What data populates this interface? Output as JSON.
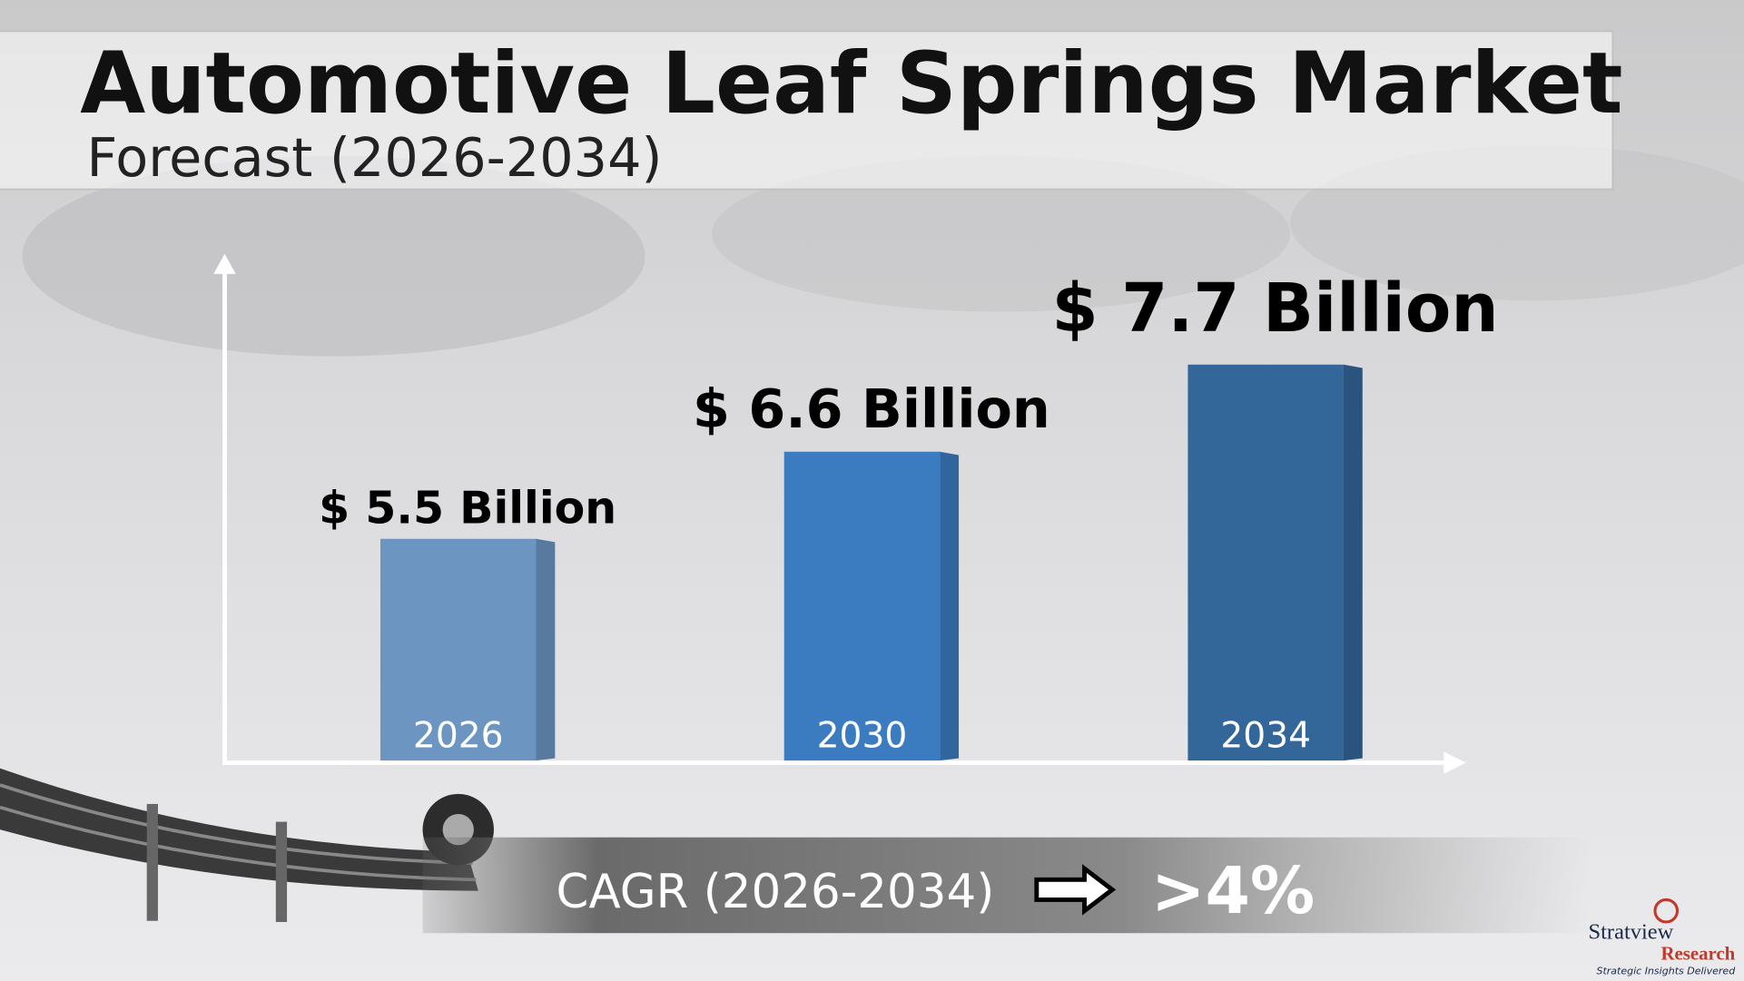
{
  "chart_data": {
    "type": "bar",
    "title": "Automotive Leaf Springs Market",
    "subtitle": "Forecast (2026-2034)",
    "categories": [
      "2026",
      "2030",
      "2034"
    ],
    "values": [
      5.5,
      6.6,
      7.7
    ],
    "value_labels": [
      "$ 5.5 Billion",
      "$ 6.6 Billion",
      "$ 7.7 Billion"
    ],
    "colors": [
      "#6d95c2",
      "#3b7cc0",
      "#336799"
    ],
    "ylim": [
      2.7,
      9
    ],
    "cagr": {
      "label": "CAGR (2026-2034)",
      "value": ">4%"
    }
  },
  "logo": {
    "name": "Stratview",
    "sub": "Research",
    "tagline": "Strategic Insights Delivered"
  }
}
